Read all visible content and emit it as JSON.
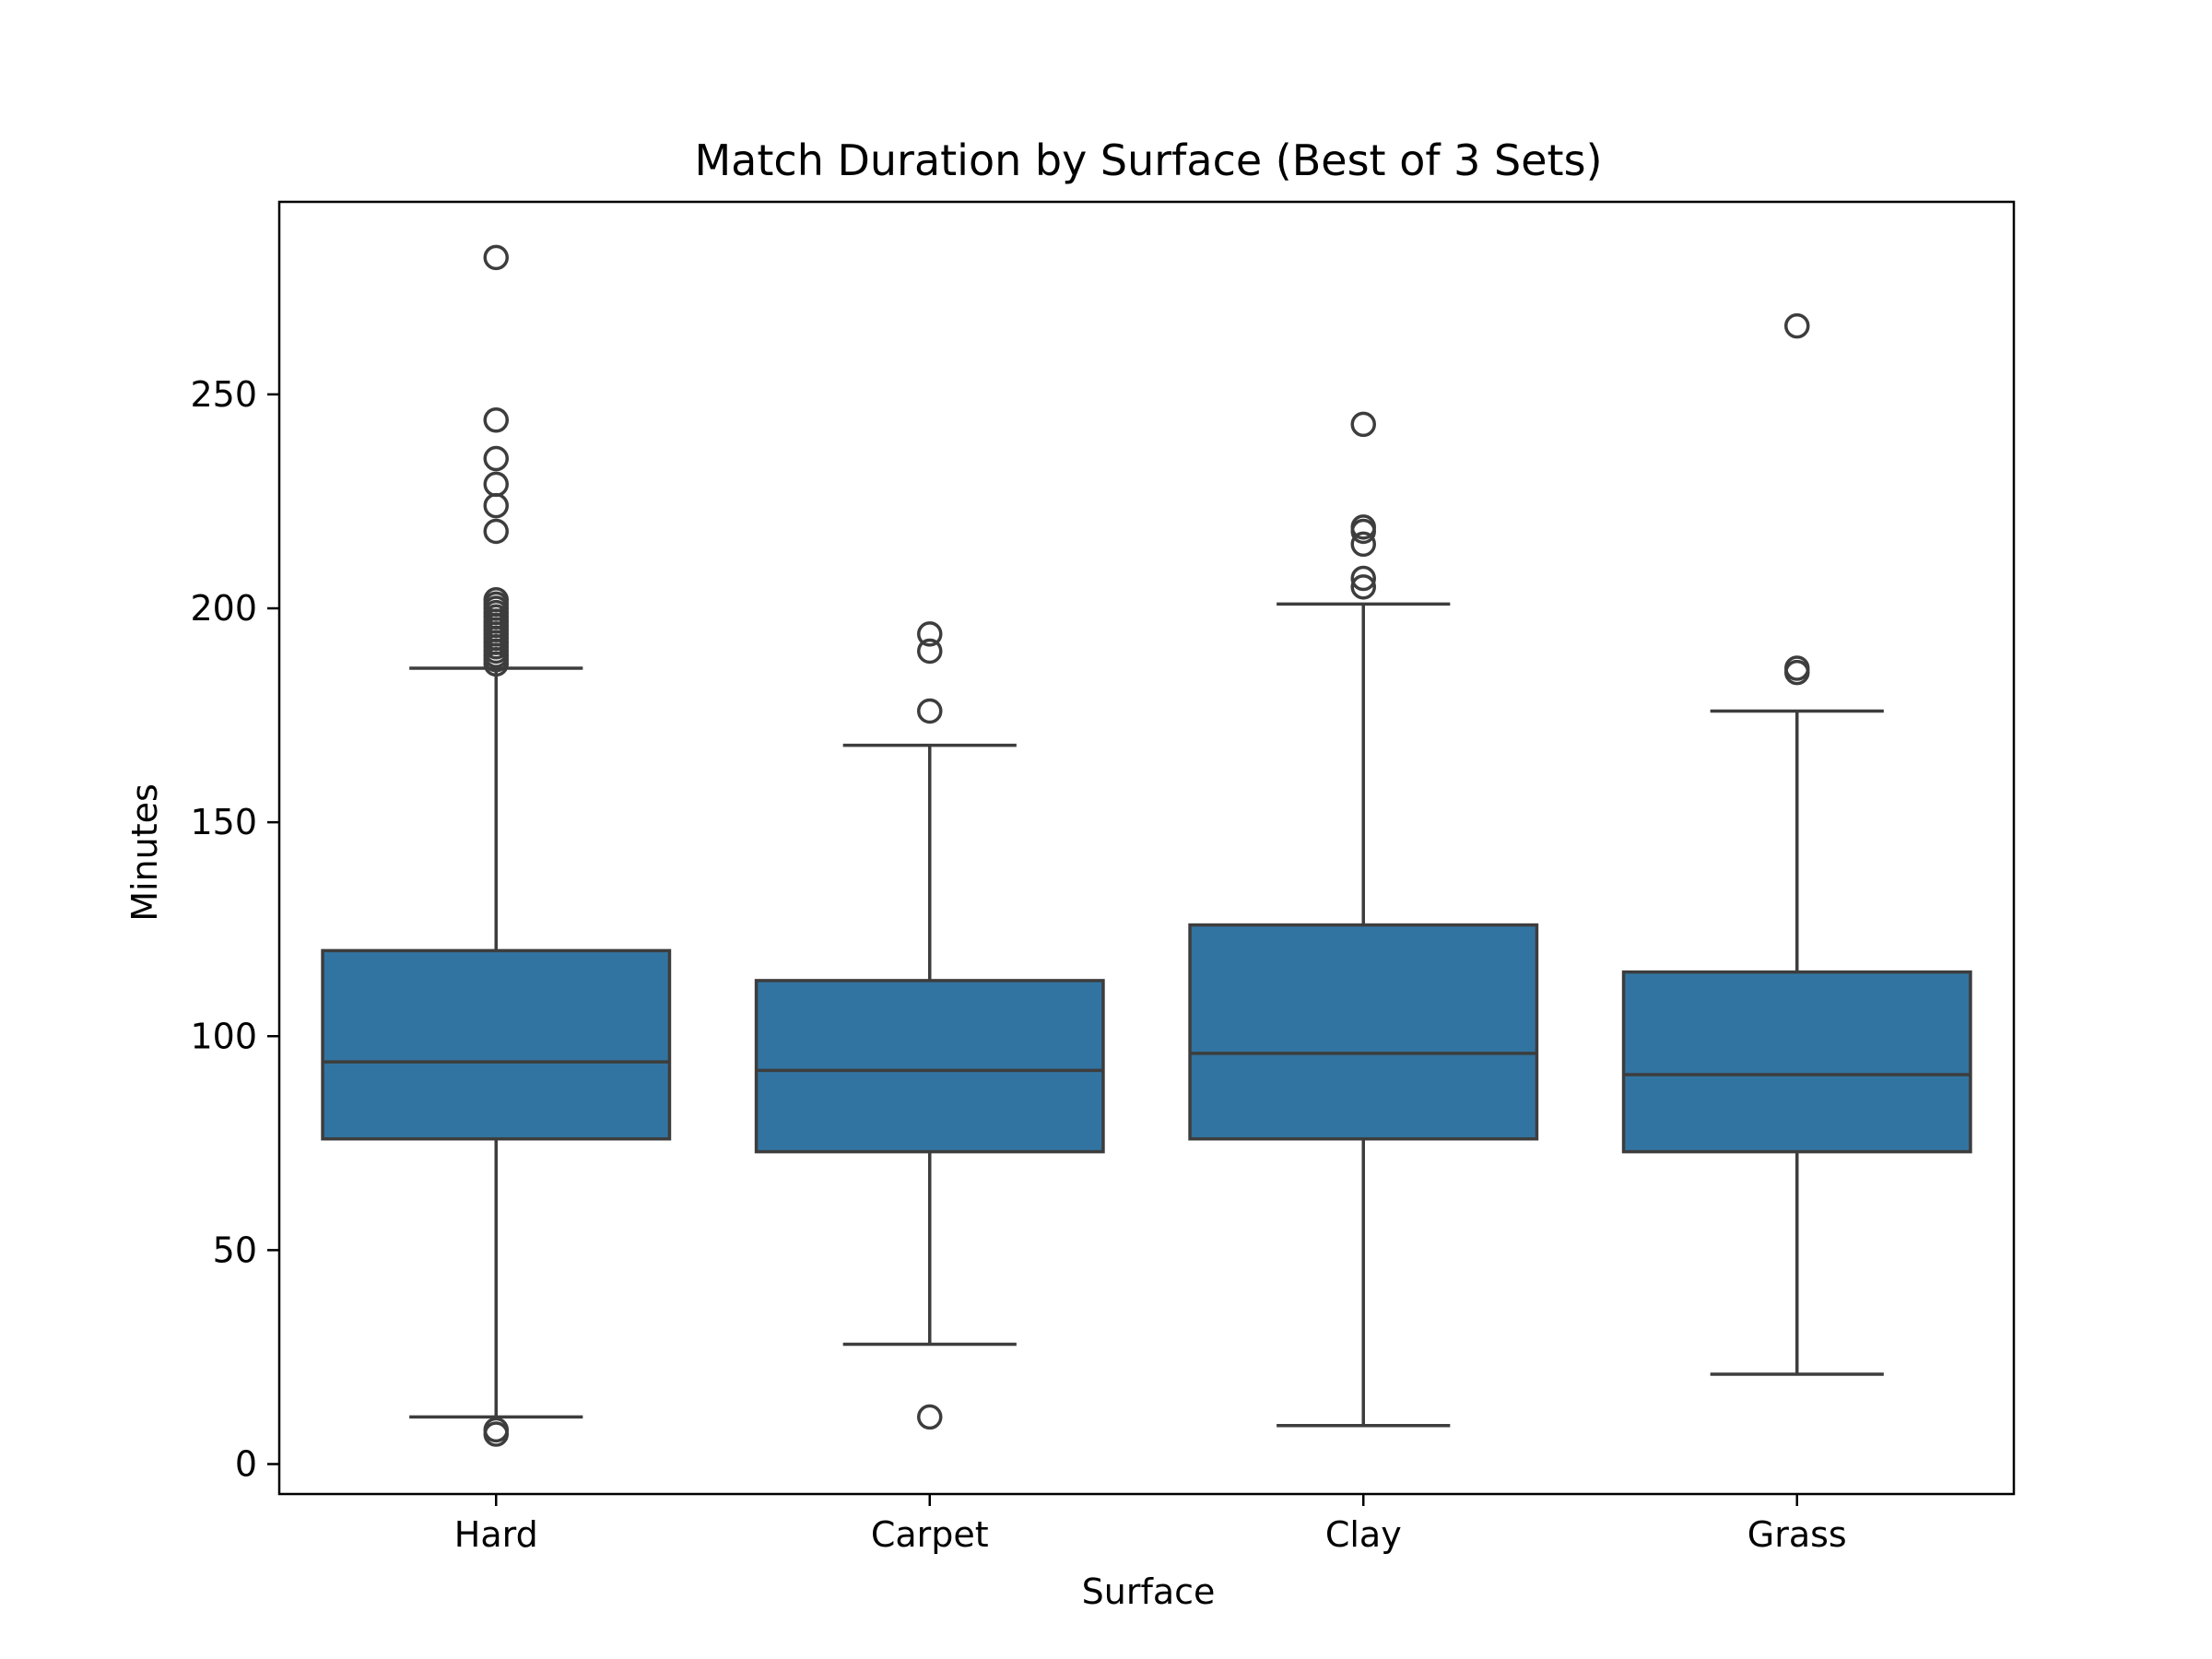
{
  "chart_data": {
    "type": "box",
    "title": "Match Duration by Surface (Best of 3 Sets)",
    "xlabel": "Surface",
    "ylabel": "Minutes",
    "ylim": [
      -7,
      295
    ],
    "yticks": [
      0,
      50,
      100,
      150,
      200,
      250
    ],
    "categories": [
      "Hard",
      "Carpet",
      "Clay",
      "Grass"
    ],
    "box_color": "#3274a1",
    "line_color": "#3d3d3d",
    "grid": false,
    "legend": "none",
    "boxes": [
      {
        "category": "Hard",
        "whisker_low": 11,
        "q1": 76,
        "median": 94,
        "q3": 120,
        "whisker_high": 186,
        "outliers": [
          7,
          8,
          187,
          188,
          189,
          190,
          191,
          192,
          193,
          194,
          195,
          196,
          197,
          198,
          199,
          200,
          201,
          202,
          218,
          224,
          229,
          235,
          244,
          282
        ]
      },
      {
        "category": "Carpet",
        "whisker_low": 28,
        "q1": 73,
        "median": 92,
        "q3": 113,
        "whisker_high": 168,
        "outliers": [
          11,
          176,
          190,
          194
        ]
      },
      {
        "category": "Clay",
        "whisker_low": 9,
        "q1": 76,
        "median": 96,
        "q3": 126,
        "whisker_high": 201,
        "outliers": [
          205,
          207,
          215,
          218,
          219,
          243
        ]
      },
      {
        "category": "Grass",
        "whisker_low": 21,
        "q1": 73,
        "median": 91,
        "q3": 115,
        "whisker_high": 176,
        "outliers": [
          185,
          186,
          266
        ]
      }
    ]
  }
}
